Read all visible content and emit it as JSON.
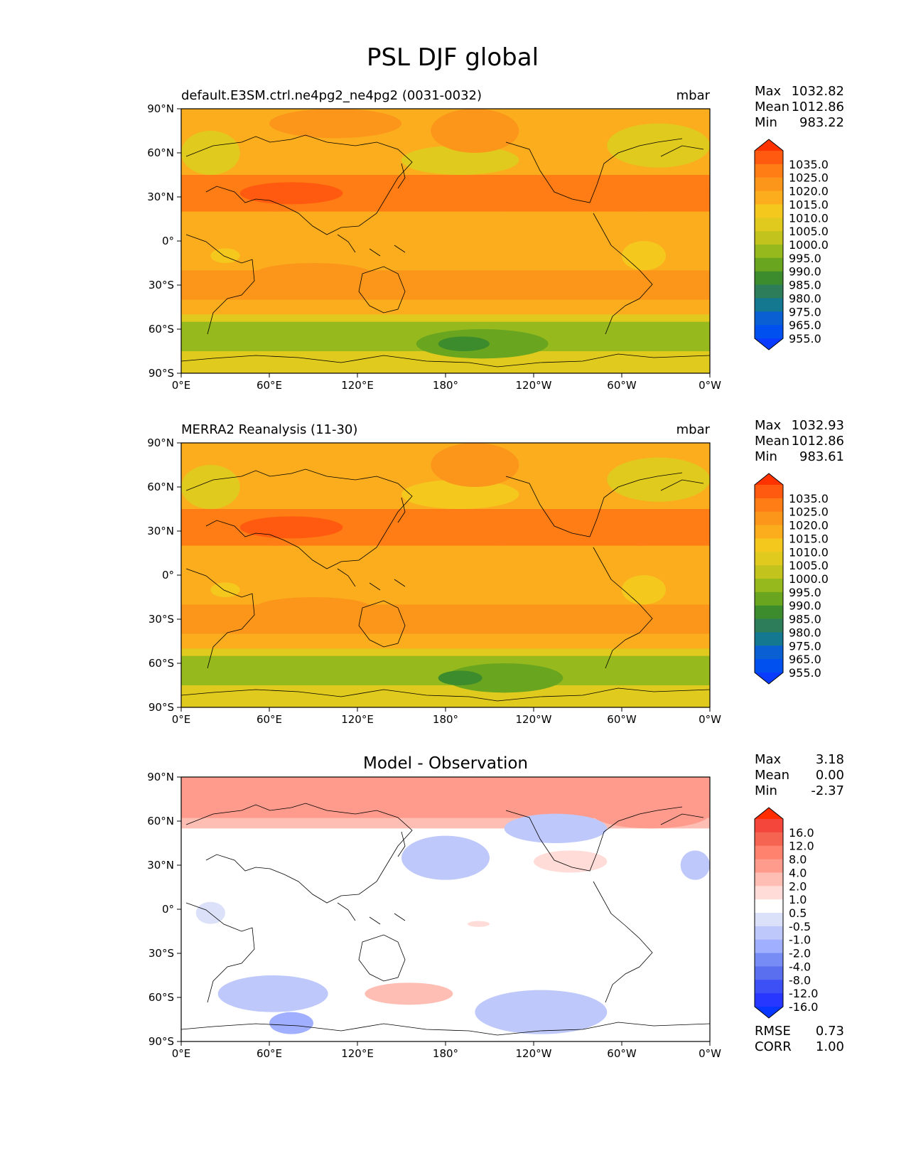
{
  "figure_title": "PSL DJF global",
  "chart_data": [
    {
      "type": "heatmap",
      "kind": "filled-contour-map",
      "title": "default.E3SM.ctrl.ne4pg2_ne4pg2 (0031-0032)",
      "units": "mbar",
      "xlabel": "",
      "ylabel": "",
      "xlim": [
        0,
        360
      ],
      "ylim": [
        -90,
        90
      ],
      "x_ticks": [
        "0°E",
        "60°E",
        "120°E",
        "180°",
        "120°W",
        "60°W",
        "0°W"
      ],
      "y_ticks": [
        "90°N",
        "60°N",
        "30°N",
        "0°",
        "30°S",
        "60°S",
        "90°S"
      ],
      "stats": [
        {
          "label": "Max",
          "value": "1032.82"
        },
        {
          "label": "Mean",
          "value": "1012.86"
        },
        {
          "label": "Min",
          "value": "983.22"
        }
      ],
      "colorbar": {
        "levels": [
          "1035.0",
          "1025.0",
          "1020.0",
          "1015.0",
          "1010.0",
          "1005.0",
          "1000.0",
          "995.0",
          "990.0",
          "985.0",
          "980.0",
          "975.0",
          "965.0",
          "955.0"
        ],
        "colors": [
          "#ff3300",
          "#ff5a0f",
          "#ff7d14",
          "#fb961a",
          "#fbad1e",
          "#f5c81e",
          "#e1ca1e",
          "#c3c31e",
          "#96b91e",
          "#69a51e",
          "#3c8c2d",
          "#2d7d5a",
          "#147891",
          "#0a5fd2",
          "#0050f0",
          "#0a3cff"
        ]
      },
      "lat_bands": [
        {
          "lat": [
            60,
            90
          ],
          "value": 1012
        },
        {
          "lat": [
            45,
            60
          ],
          "value": 1010
        },
        {
          "lat": [
            20,
            45
          ],
          "value": 1020
        },
        {
          "lat": [
            -20,
            20
          ],
          "value": 1012
        },
        {
          "lat": [
            -40,
            -20
          ],
          "value": 1016
        },
        {
          "lat": [
            -50,
            -40
          ],
          "value": 1010
        },
        {
          "lat": [
            -55,
            -50
          ],
          "value": 1002
        },
        {
          "lat": [
            -75,
            -55
          ],
          "value": 992
        },
        {
          "lat": [
            -90,
            -75
          ],
          "value": 1004
        }
      ],
      "features": [
        {
          "lon": [
            0,
            130
          ],
          "lat": [
            20,
            45
          ],
          "value": 1022
        },
        {
          "lon": [
            40,
            110
          ],
          "lat": [
            25,
            40
          ],
          "value": 1026
        },
        {
          "lon": [
            175,
            260
          ],
          "lat": [
            20,
            40
          ],
          "value": 1021
        },
        {
          "lon": [
            270,
            360
          ],
          "lat": [
            20,
            45
          ],
          "value": 1022
        },
        {
          "lon": [
            0,
            40
          ],
          "lat": [
            45,
            75
          ],
          "value": 1004
        },
        {
          "lon": [
            290,
            360
          ],
          "lat": [
            50,
            80
          ],
          "value": 1000
        },
        {
          "lon": [
            150,
            230
          ],
          "lat": [
            45,
            65
          ],
          "value": 1004
        },
        {
          "lon": [
            170,
            230
          ],
          "lat": [
            60,
            90
          ],
          "value": 1016
        },
        {
          "lon": [
            60,
            150
          ],
          "lat": [
            70,
            90
          ],
          "value": 1018
        },
        {
          "lon": [
            300,
            330
          ],
          "lat": [
            -20,
            0
          ],
          "value": 1008
        },
        {
          "lon": [
            20,
            40
          ],
          "lat": [
            -15,
            -5
          ],
          "value": 1008
        },
        {
          "lon": [
            160,
            250
          ],
          "lat": [
            -80,
            -60
          ],
          "value": 985
        },
        {
          "lon": [
            175,
            210
          ],
          "lat": [
            -75,
            -65
          ],
          "value": 980
        },
        {
          "lon": [
            50,
            130
          ],
          "lat": [
            -30,
            -15
          ],
          "value": 1018
        }
      ]
    },
    {
      "type": "heatmap",
      "kind": "filled-contour-map",
      "title": "MERRA2 Reanalysis (11-30)",
      "units": "mbar",
      "xlabel": "",
      "ylabel": "",
      "xlim": [
        0,
        360
      ],
      "ylim": [
        -90,
        90
      ],
      "x_ticks": [
        "0°E",
        "60°E",
        "120°E",
        "180°",
        "120°W",
        "60°W",
        "0°W"
      ],
      "y_ticks": [
        "90°N",
        "60°N",
        "30°N",
        "0°",
        "30°S",
        "60°S",
        "90°S"
      ],
      "stats": [
        {
          "label": "Max",
          "value": "1032.93"
        },
        {
          "label": "Mean",
          "value": "1012.86"
        },
        {
          "label": "Min",
          "value": "983.61"
        }
      ],
      "colorbar": {
        "levels": [
          "1035.0",
          "1025.0",
          "1020.0",
          "1015.0",
          "1010.0",
          "1005.0",
          "1000.0",
          "995.0",
          "990.0",
          "985.0",
          "980.0",
          "975.0",
          "965.0",
          "955.0"
        ],
        "colors": [
          "#ff3300",
          "#ff5a0f",
          "#ff7d14",
          "#fb961a",
          "#fbad1e",
          "#f5c81e",
          "#e1ca1e",
          "#c3c31e",
          "#96b91e",
          "#69a51e",
          "#3c8c2d",
          "#2d7d5a",
          "#147891",
          "#0a5fd2",
          "#0050f0",
          "#0a3cff"
        ]
      },
      "lat_bands": [
        {
          "lat": [
            60,
            90
          ],
          "value": 1012
        },
        {
          "lat": [
            45,
            60
          ],
          "value": 1010
        },
        {
          "lat": [
            20,
            45
          ],
          "value": 1020
        },
        {
          "lat": [
            -20,
            20
          ],
          "value": 1012
        },
        {
          "lat": [
            -40,
            -20
          ],
          "value": 1016
        },
        {
          "lat": [
            -50,
            -40
          ],
          "value": 1010
        },
        {
          "lat": [
            -55,
            -50
          ],
          "value": 1002
        },
        {
          "lat": [
            -75,
            -55
          ],
          "value": 992
        },
        {
          "lat": [
            -90,
            -75
          ],
          "value": 1004
        }
      ],
      "features": [
        {
          "lon": [
            0,
            130
          ],
          "lat": [
            20,
            45
          ],
          "value": 1022
        },
        {
          "lon": [
            40,
            110
          ],
          "lat": [
            25,
            40
          ],
          "value": 1026
        },
        {
          "lon": [
            175,
            260
          ],
          "lat": [
            20,
            40
          ],
          "value": 1021
        },
        {
          "lon": [
            270,
            360
          ],
          "lat": [
            20,
            45
          ],
          "value": 1022
        },
        {
          "lon": [
            0,
            40
          ],
          "lat": [
            45,
            75
          ],
          "value": 1004
        },
        {
          "lon": [
            290,
            360
          ],
          "lat": [
            50,
            80
          ],
          "value": 1000
        },
        {
          "lon": [
            150,
            230
          ],
          "lat": [
            45,
            65
          ],
          "value": 1008
        },
        {
          "lon": [
            170,
            230
          ],
          "lat": [
            60,
            90
          ],
          "value": 1016
        },
        {
          "lon": [
            300,
            330
          ],
          "lat": [
            -20,
            0
          ],
          "value": 1008
        },
        {
          "lon": [
            20,
            40
          ],
          "lat": [
            -15,
            -5
          ],
          "value": 1008
        },
        {
          "lon": [
            180,
            260
          ],
          "lat": [
            -80,
            -60
          ],
          "value": 988
        },
        {
          "lon": [
            175,
            205
          ],
          "lat": [
            -75,
            -65
          ],
          "value": 984
        },
        {
          "lon": [
            50,
            130
          ],
          "lat": [
            -30,
            -15
          ],
          "value": 1018
        }
      ]
    },
    {
      "type": "heatmap",
      "kind": "filled-contour-map",
      "title": "Model - Observation",
      "units": "",
      "xlabel": "",
      "ylabel": "",
      "xlim": [
        0,
        360
      ],
      "ylim": [
        -90,
        90
      ],
      "x_ticks": [
        "0°E",
        "60°E",
        "120°E",
        "180°",
        "120°W",
        "60°W",
        "0°W"
      ],
      "y_ticks": [
        "90°N",
        "60°N",
        "30°N",
        "0°",
        "30°S",
        "60°S",
        "90°S"
      ],
      "stats": [
        {
          "label": "Max",
          "value": "3.18"
        },
        {
          "label": "Mean",
          "value": "0.00"
        },
        {
          "label": "Min",
          "value": "-2.37"
        }
      ],
      "colorbar": {
        "levels": [
          "16.0",
          "12.0",
          "8.0",
          "4.0",
          "2.0",
          "1.0",
          "0.5",
          "-0.5",
          "-1.0",
          "-2.0",
          "-4.0",
          "-8.0",
          "-12.0",
          "-16.0"
        ],
        "colors": [
          "#ff2d00",
          "#f5463c",
          "#f56450",
          "#ff826e",
          "#ff9b8c",
          "#ffbeb4",
          "#ffdcd7",
          "#ffffff",
          "#dce1fa",
          "#bec8fa",
          "#a0afff",
          "#788cf5",
          "#5a6ef0",
          "#3c50f5",
          "#2837ff",
          "#0a37ff"
        ]
      },
      "lat_bands": [
        {
          "lat": [
            62,
            90
          ],
          "value": 2.5
        },
        {
          "lat": [
            55,
            62
          ],
          "value": 1.2
        }
      ],
      "features": [
        {
          "lon": [
            60,
            150
          ],
          "lat": [
            75,
            90
          ],
          "value": 3
        },
        {
          "lon": [
            280,
            360
          ],
          "lat": [
            55,
            75
          ],
          "value": 2.5
        },
        {
          "lon": [
            150,
            210
          ],
          "lat": [
            20,
            50
          ],
          "value": -1.2
        },
        {
          "lon": [
            220,
            290
          ],
          "lat": [
            45,
            65
          ],
          "value": -1.5
        },
        {
          "lon": [
            240,
            290
          ],
          "lat": [
            25,
            40
          ],
          "value": 0.8
        },
        {
          "lon": [
            340,
            360
          ],
          "lat": [
            20,
            40
          ],
          "value": -1.2
        },
        {
          "lon": [
            10,
            30
          ],
          "lat": [
            -10,
            5
          ],
          "value": -0.8
        },
        {
          "lon": [
            25,
            100
          ],
          "lat": [
            -70,
            -45
          ],
          "value": -1.2
        },
        {
          "lon": [
            60,
            90
          ],
          "lat": [
            -85,
            -70
          ],
          "value": -2.2
        },
        {
          "lon": [
            125,
            185
          ],
          "lat": [
            -65,
            -50
          ],
          "value": 1.2
        },
        {
          "lon": [
            200,
            290
          ],
          "lat": [
            -85,
            -55
          ],
          "value": -1.2
        },
        {
          "lon": [
            195,
            210
          ],
          "lat": [
            -12,
            -8
          ],
          "value": 0.8
        }
      ],
      "extra_stats": [
        {
          "label": "RMSE",
          "value": "0.73"
        },
        {
          "label": "CORR",
          "value": "1.00"
        }
      ]
    }
  ]
}
